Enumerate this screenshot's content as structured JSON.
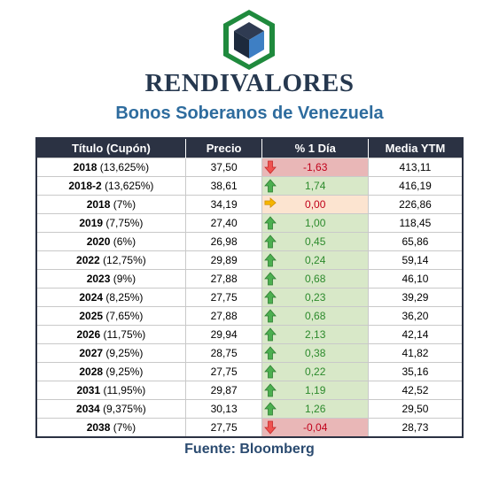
{
  "brand": {
    "name": "RENDIVALORES"
  },
  "title": "Bonos Soberanos de Venezuela",
  "table": {
    "headers": [
      "Título (Cupón)",
      "Precio",
      "% 1 Día",
      "Media YTM"
    ],
    "rows": [
      {
        "year": "2018",
        "coupon": "(13,625%)",
        "price": "37,50",
        "change": "-1,63",
        "trend": "down",
        "ytm": "413,11"
      },
      {
        "year": "2018-2",
        "coupon": "(13,625%)",
        "price": "38,61",
        "change": "1,74",
        "trend": "up",
        "ytm": "416,19"
      },
      {
        "year": "2018",
        "coupon": "(7%)",
        "price": "34,19",
        "change": "0,00",
        "trend": "flat",
        "ytm": "226,86"
      },
      {
        "year": "2019",
        "coupon": "(7,75%)",
        "price": "27,40",
        "change": "1,00",
        "trend": "up",
        "ytm": "118,45"
      },
      {
        "year": "2020",
        "coupon": "(6%)",
        "price": "26,98",
        "change": "0,45",
        "trend": "up",
        "ytm": "65,86"
      },
      {
        "year": "2022",
        "coupon": "(12,75%)",
        "price": "29,89",
        "change": "0,24",
        "trend": "up",
        "ytm": "59,14"
      },
      {
        "year": "2023",
        "coupon": "(9%)",
        "price": "27,88",
        "change": "0,68",
        "trend": "up",
        "ytm": "46,10"
      },
      {
        "year": "2024",
        "coupon": "(8,25%)",
        "price": "27,75",
        "change": "0,23",
        "trend": "up",
        "ytm": "39,29"
      },
      {
        "year": "2025",
        "coupon": "(7,65%)",
        "price": "27,88",
        "change": "0,68",
        "trend": "up",
        "ytm": "36,20"
      },
      {
        "year": "2026",
        "coupon": "(11,75%)",
        "price": "29,94",
        "change": "2,13",
        "trend": "up",
        "ytm": "42,14"
      },
      {
        "year": "2027",
        "coupon": "(9,25%)",
        "price": "28,75",
        "change": "0,38",
        "trend": "up",
        "ytm": "41,82"
      },
      {
        "year": "2028",
        "coupon": "(9,25%)",
        "price": "27,75",
        "change": "0,22",
        "trend": "up",
        "ytm": "35,16"
      },
      {
        "year": "2031",
        "coupon": "(11,95%)",
        "price": "29,87",
        "change": "1,19",
        "trend": "up",
        "ytm": "42,52"
      },
      {
        "year": "2034",
        "coupon": "(9,375%)",
        "price": "30,13",
        "change": "1,26",
        "trend": "up",
        "ytm": "29,50"
      },
      {
        "year": "2038",
        "coupon": "(7%)",
        "price": "27,75",
        "change": "-0,04",
        "trend": "down",
        "ytm": "28,73"
      }
    ]
  },
  "footer": "Fuente: Bloomberg",
  "colors": {
    "header_bg": "#2b3243",
    "title": "#2e6c9e",
    "up_bg": "#d8e8c8",
    "down_bg": "#e9b7b7",
    "flat_bg": "#fce4d0",
    "up_arrow": "#4caf50",
    "down_arrow": "#ef5350",
    "flat_arrow": "#f5b400"
  },
  "icons": {
    "up": "arrow-up-icon",
    "down": "arrow-down-icon",
    "flat": "arrow-right-icon"
  }
}
